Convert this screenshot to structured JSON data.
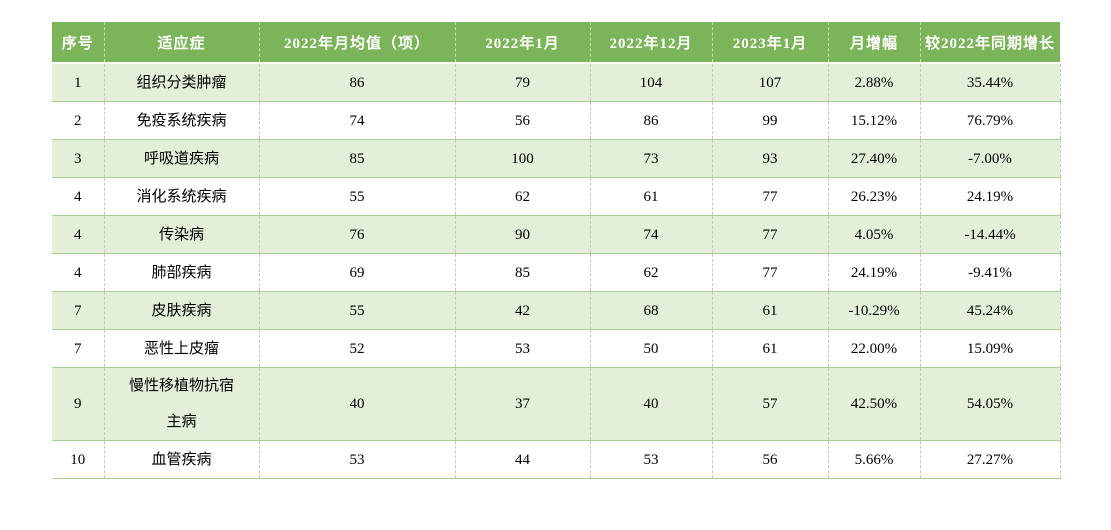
{
  "chart_data": {
    "type": "table",
    "columns": [
      "序号",
      "适应症",
      "2022年月均值（项）",
      "2022年1月",
      "2022年12月",
      "2023年1月",
      "月增幅",
      "较2022年同期增长"
    ],
    "rows": [
      [
        "1",
        "组织分类肿瘤",
        "86",
        "79",
        "104",
        "107",
        "2.88%",
        "35.44%"
      ],
      [
        "2",
        "免疫系统疾病",
        "74",
        "56",
        "86",
        "99",
        "15.12%",
        "76.79%"
      ],
      [
        "3",
        "呼吸道疾病",
        "85",
        "100",
        "73",
        "93",
        "27.40%",
        "-7.00%"
      ],
      [
        "4",
        "消化系统疾病",
        "55",
        "62",
        "61",
        "77",
        "26.23%",
        "24.19%"
      ],
      [
        "4",
        "传染病",
        "76",
        "90",
        "74",
        "77",
        "4.05%",
        "-14.44%"
      ],
      [
        "4",
        "肺部疾病",
        "69",
        "85",
        "62",
        "77",
        "24.19%",
        "-9.41%"
      ],
      [
        "7",
        "皮肤疾病",
        "55",
        "42",
        "68",
        "61",
        "-10.29%",
        "45.24%"
      ],
      [
        "7",
        "恶性上皮瘤",
        "52",
        "53",
        "50",
        "61",
        "22.00%",
        "15.09%"
      ],
      [
        "9",
        "慢性移植物抗宿主病",
        "40",
        "37",
        "40",
        "57",
        "42.50%",
        "54.05%"
      ],
      [
        "10",
        "血管疾病",
        "53",
        "44",
        "53",
        "56",
        "5.66%",
        "27.27%"
      ]
    ]
  },
  "colors": {
    "header_bg": "#7CB45A",
    "header_text": "#FFFFFF",
    "row_band_bg": "#E3EFD9",
    "row_band_border": "#A9D08E",
    "grid_dash": "#C6C6C6",
    "text": "#000000"
  }
}
